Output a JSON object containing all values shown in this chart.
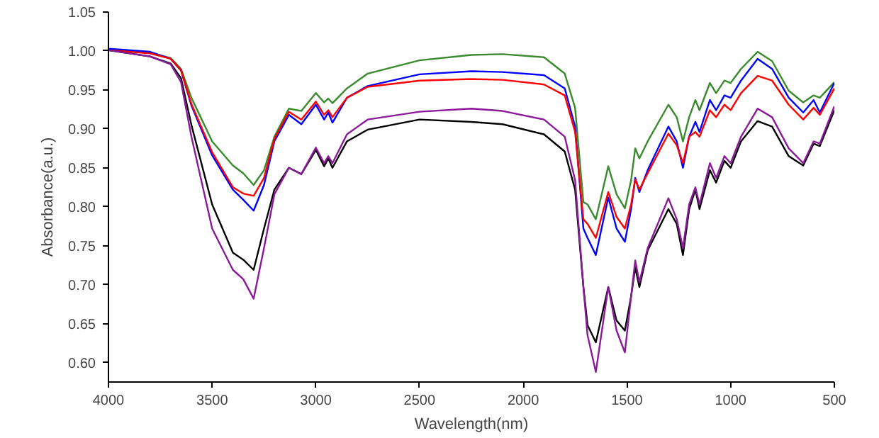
{
  "chart_data": {
    "type": "line",
    "xlabel": "Wavelength(nm)",
    "ylabel": "Absorbance(a.u.)",
    "x": [
      4000,
      3800,
      3700,
      3650,
      3600,
      3500,
      3400,
      3350,
      3300,
      3250,
      3200,
      3130,
      3070,
      3000,
      2960,
      2940,
      2920,
      2850,
      2750,
      2500,
      2250,
      2100,
      1900,
      1800,
      1750,
      1710,
      1690,
      1650,
      1590,
      1550,
      1510,
      1480,
      1460,
      1440,
      1400,
      1300,
      1260,
      1230,
      1200,
      1170,
      1150,
      1100,
      1070,
      1030,
      1000,
      950,
      870,
      800,
      720,
      650,
      600,
      570,
      500
    ],
    "series": [
      {
        "color": "#3a8a2e",
        "values": [
          1.001,
          0.998,
          0.991,
          0.977,
          0.94,
          0.884,
          0.853,
          0.843,
          0.828,
          0.847,
          0.89,
          0.926,
          0.923,
          0.946,
          0.934,
          0.939,
          0.933,
          0.952,
          0.971,
          0.988,
          0.995,
          0.996,
          0.992,
          0.971,
          0.927,
          0.806,
          0.803,
          0.784,
          0.852,
          0.816,
          0.798,
          0.834,
          0.875,
          0.862,
          0.884,
          0.931,
          0.915,
          0.884,
          0.915,
          0.937,
          0.924,
          0.959,
          0.946,
          0.962,
          0.959,
          0.977,
          0.999,
          0.987,
          0.949,
          0.934,
          0.943,
          0.94,
          0.96
        ]
      },
      {
        "color": "#0000ff",
        "values": [
          1.003,
          0.999,
          0.99,
          0.975,
          0.93,
          0.866,
          0.822,
          0.809,
          0.795,
          0.828,
          0.884,
          0.918,
          0.906,
          0.931,
          0.912,
          0.921,
          0.908,
          0.94,
          0.955,
          0.97,
          0.974,
          0.973,
          0.969,
          0.952,
          0.903,
          0.772,
          0.76,
          0.738,
          0.812,
          0.772,
          0.755,
          0.797,
          0.837,
          0.819,
          0.847,
          0.903,
          0.884,
          0.85,
          0.89,
          0.909,
          0.896,
          0.937,
          0.924,
          0.943,
          0.94,
          0.962,
          0.99,
          0.977,
          0.94,
          0.921,
          0.937,
          0.921,
          0.959
        ]
      },
      {
        "color": "#ff0000",
        "values": [
          1.001,
          0.997,
          0.99,
          0.975,
          0.932,
          0.87,
          0.825,
          0.817,
          0.814,
          0.837,
          0.887,
          0.922,
          0.912,
          0.935,
          0.918,
          0.924,
          0.915,
          0.94,
          0.954,
          0.962,
          0.964,
          0.963,
          0.957,
          0.943,
          0.896,
          0.784,
          0.778,
          0.76,
          0.819,
          0.787,
          0.772,
          0.803,
          0.835,
          0.822,
          0.843,
          0.894,
          0.879,
          0.856,
          0.89,
          0.896,
          0.89,
          0.924,
          0.915,
          0.931,
          0.924,
          0.946,
          0.968,
          0.962,
          0.931,
          0.912,
          0.927,
          0.918,
          0.952
        ]
      },
      {
        "color": "#000000",
        "values": [
          1.001,
          0.993,
          0.984,
          0.965,
          0.905,
          0.803,
          0.741,
          0.732,
          0.719,
          0.772,
          0.822,
          0.85,
          0.842,
          0.873,
          0.852,
          0.862,
          0.85,
          0.884,
          0.899,
          0.912,
          0.909,
          0.906,
          0.893,
          0.871,
          0.822,
          0.697,
          0.648,
          0.626,
          0.697,
          0.654,
          0.641,
          0.685,
          0.722,
          0.697,
          0.744,
          0.797,
          0.778,
          0.738,
          0.797,
          0.822,
          0.797,
          0.847,
          0.831,
          0.859,
          0.85,
          0.884,
          0.91,
          0.903,
          0.865,
          0.853,
          0.881,
          0.878,
          0.924
        ]
      },
      {
        "color": "#8b1a9a",
        "values": [
          1.001,
          0.993,
          0.983,
          0.96,
          0.89,
          0.772,
          0.719,
          0.707,
          0.682,
          0.747,
          0.816,
          0.85,
          0.842,
          0.876,
          0.856,
          0.865,
          0.856,
          0.893,
          0.912,
          0.922,
          0.926,
          0.923,
          0.912,
          0.89,
          0.834,
          0.697,
          0.635,
          0.588,
          0.697,
          0.641,
          0.613,
          0.685,
          0.731,
          0.703,
          0.747,
          0.811,
          0.784,
          0.747,
          0.803,
          0.825,
          0.803,
          0.856,
          0.837,
          0.865,
          0.856,
          0.89,
          0.926,
          0.915,
          0.875,
          0.856,
          0.884,
          0.881,
          0.929
        ]
      }
    ],
    "xlim": [
      4000,
      500
    ],
    "xticks": [
      4000,
      3500,
      3000,
      2500,
      2000,
      1500,
      1000,
      500
    ],
    "ylim": [
      0.575,
      1.05
    ],
    "yticks": [
      {
        "value": 0.6,
        "label": "0.60"
      },
      {
        "value": 0.65,
        "label": "0.65"
      },
      {
        "value": 0.7,
        "label": "0.70"
      },
      {
        "value": 0.75,
        "label": "0.75"
      },
      {
        "value": 0.8,
        "label": "0.80"
      },
      {
        "value": 0.85,
        "label": "0.85"
      },
      {
        "value": 0.9,
        "label": "0.90"
      },
      {
        "value": 0.95,
        "label": "0.95"
      },
      {
        "value": 1.0,
        "label": "1.00"
      },
      {
        "value": 1.05,
        "label": "1.05"
      }
    ],
    "grid": false,
    "marker": "none",
    "line_style": "solid"
  }
}
